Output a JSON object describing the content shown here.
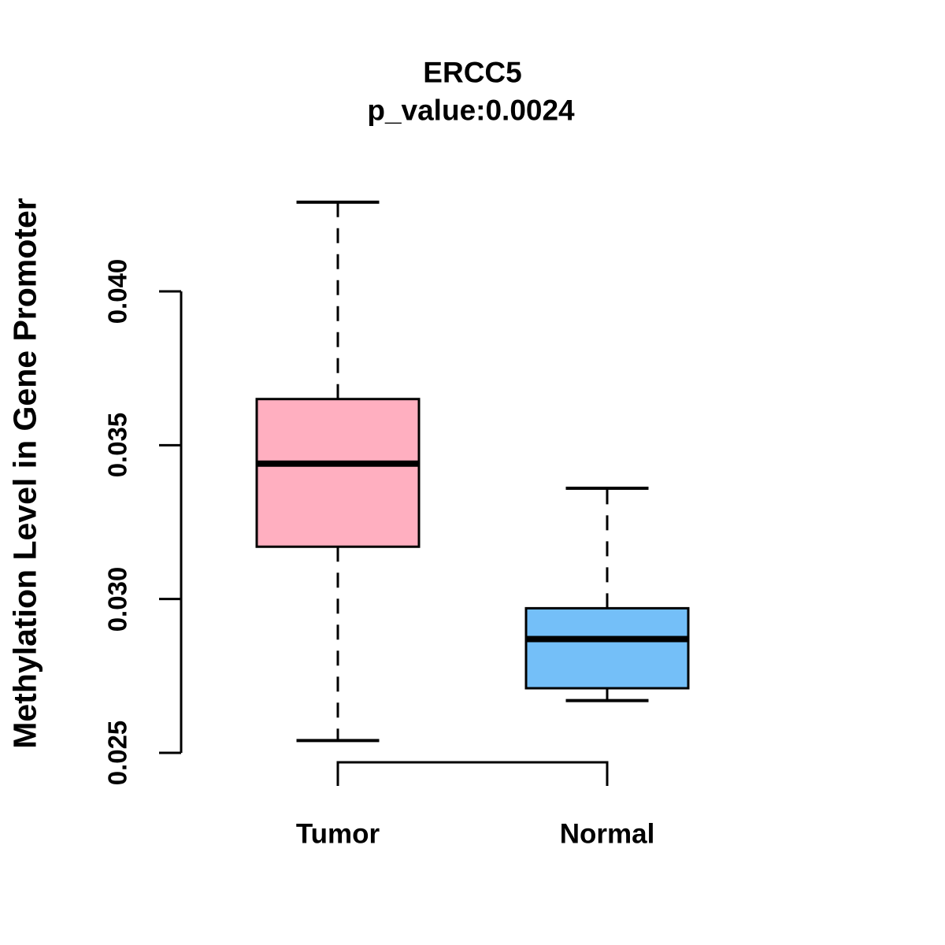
{
  "title": {
    "gene": "ERCC5",
    "pvalue_line": "p_value:0.0024"
  },
  "axes": {
    "y_label": "Methylation Level in Gene Promoter",
    "y_tick_labels": [
      "0.025",
      "0.030",
      "0.035",
      "0.040"
    ],
    "x_categories": [
      "Tumor",
      "Normal"
    ]
  },
  "colors": {
    "background": "#ffffff",
    "stroke": "#000000",
    "tumor_fill": "#FFAFC0",
    "normal_fill": "#74BFF8"
  },
  "chart_data": {
    "type": "boxplot",
    "title": "ERCC5",
    "subtitle": "p_value:0.0024",
    "ylabel": "Methylation Level in Gene Promoter",
    "xlabel": "",
    "categories": [
      "Tumor",
      "Normal"
    ],
    "y_ticks": [
      0.025,
      0.03,
      0.035,
      0.04
    ],
    "ylim": [
      0.0238,
      0.0443
    ],
    "grid": false,
    "legend": "none",
    "whisker_style": "dashed",
    "series": [
      {
        "name": "Tumor",
        "fill": "#FFAFC0",
        "whisker_low": 0.0254,
        "q1": 0.0317,
        "median": 0.0344,
        "q3": 0.0365,
        "whisker_high": 0.0429
      },
      {
        "name": "Normal",
        "fill": "#74BFF8",
        "whisker_low": 0.0267,
        "q1": 0.0271,
        "median": 0.0287,
        "q3": 0.0297,
        "whisker_high": 0.0336
      }
    ]
  }
}
